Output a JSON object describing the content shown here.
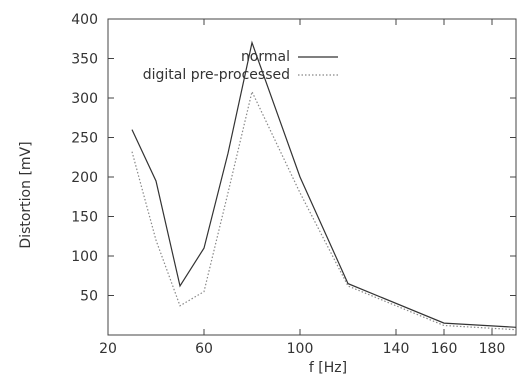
{
  "chart_data": {
    "type": "line",
    "xlabel": "f [Hz]",
    "ylabel": "Distortion [mV]",
    "xlim": [
      20,
      190
    ],
    "ylim": [
      0,
      400
    ],
    "xticks": [
      20,
      60,
      100,
      140,
      160,
      180
    ],
    "yticks": [
      50,
      100,
      150,
      200,
      250,
      300,
      350,
      400
    ],
    "grid": false,
    "legend_position": "top-right",
    "series": [
      {
        "name": "normal",
        "color": "#333333",
        "dash": "solid",
        "x": [
          30,
          40,
          50,
          60,
          70,
          80,
          100,
          120,
          160,
          200
        ],
        "y": [
          260,
          195,
          62,
          110,
          230,
          370,
          200,
          65,
          15,
          8
        ]
      },
      {
        "name": "digital pre-processed",
        "color": "#888888",
        "dash": "dotted",
        "x": [
          30,
          40,
          50,
          60,
          70,
          80,
          100,
          120,
          160,
          200
        ],
        "y": [
          232,
          120,
          37,
          55,
          180,
          308,
          180,
          62,
          12,
          5
        ]
      }
    ]
  }
}
